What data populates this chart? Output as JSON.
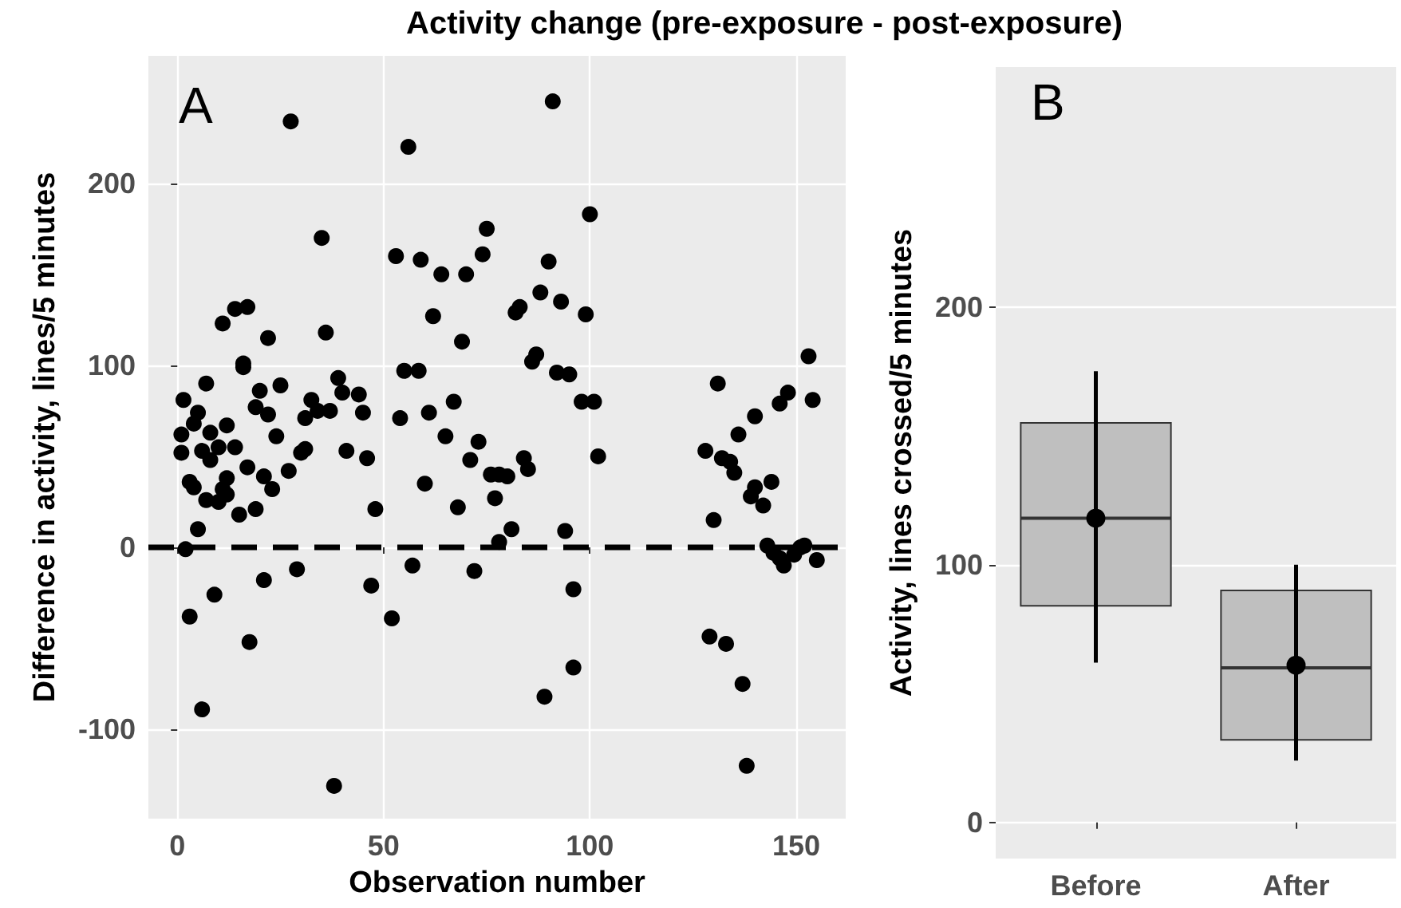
{
  "chart_data": [
    {
      "type": "scatter",
      "title": "Activity change (pre-exposure - post-exposure)",
      "xlabel": "Observation number",
      "ylabel": "Difference in activity, lines/5 minutes",
      "annotations": [
        "A"
      ],
      "xlim": [
        -7,
        162
      ],
      "ylim": [
        -149,
        270
      ],
      "xticks": [
        0,
        50,
        100,
        150
      ],
      "yticks": [
        -100,
        0,
        100,
        200
      ],
      "grid": true,
      "marker": "circle",
      "ref_lines": [
        {
          "axis": "y",
          "value": 0,
          "color": "#000000",
          "line_style": "dashed"
        }
      ],
      "series": [
        {
          "color": "#000000",
          "x": [
            27.5,
            56,
            35,
            53,
            59,
            64,
            11,
            14,
            17,
            62,
            22,
            36,
            16,
            16,
            55,
            58.5,
            7,
            25,
            39,
            1.5,
            20,
            32.5,
            40,
            44,
            19,
            22,
            37,
            34,
            45,
            5,
            12,
            31,
            54,
            61,
            1,
            24,
            8,
            1,
            4,
            6,
            8,
            10,
            14,
            31,
            30,
            41,
            46,
            65,
            3,
            4,
            17,
            21,
            23,
            27,
            12,
            11,
            10,
            7,
            12,
            15,
            19,
            48,
            60,
            5,
            2,
            29,
            21,
            47,
            57,
            9,
            3,
            52,
            17.5,
            6,
            38,
            91,
            100,
            75,
            74,
            70,
            90,
            88,
            93,
            82,
            83,
            99,
            69,
            86,
            87,
            92,
            95,
            98,
            101,
            67,
            73,
            131,
            153,
            154,
            148,
            146,
            140,
            136,
            128,
            71,
            76,
            78,
            80,
            84,
            85,
            68,
            77,
            81,
            78,
            94,
            102,
            72,
            96,
            96,
            89,
            132,
            134,
            135,
            144,
            140,
            139,
            142,
            130,
            143,
            144.5,
            146,
            147,
            149.5,
            151,
            152,
            155,
            129,
            133,
            137,
            138
          ],
          "values": [
            234,
            220,
            170,
            160,
            158,
            150,
            123,
            131,
            132,
            127,
            115,
            118,
            99,
            101,
            97,
            97,
            90,
            89,
            93,
            81,
            86,
            81,
            85,
            84,
            77,
            73,
            75,
            75,
            74,
            74,
            67,
            71,
            71,
            74,
            62,
            61,
            63,
            52,
            68,
            53,
            48,
            55,
            55,
            54,
            52,
            53,
            49,
            61,
            36,
            33,
            44,
            39,
            32,
            42,
            38,
            32,
            25,
            26,
            29,
            18,
            21,
            21,
            35,
            10,
            -1,
            -12,
            -18,
            -21,
            -10,
            -26,
            -38,
            -39,
            -52,
            -89,
            -131,
            245,
            183,
            175,
            161,
            150,
            157,
            140,
            135,
            129,
            132,
            128,
            113,
            102,
            106,
            96,
            95,
            80,
            80,
            80,
            58,
            90,
            105,
            81,
            85,
            79,
            72,
            62,
            53,
            48,
            40,
            40,
            39,
            49,
            43,
            22,
            27,
            10,
            3,
            9,
            50,
            -13,
            -23,
            -66,
            -82,
            49,
            47,
            41,
            36,
            33,
            28,
            23,
            15,
            1,
            -3,
            -6,
            -10,
            -4,
            0,
            1,
            -7,
            -49,
            -53,
            -75,
            -120
          ]
        }
      ]
    },
    {
      "type": "box",
      "ylabel": "Activity, lines crossed/5 minutes",
      "annotations": [
        "B"
      ],
      "categories": [
        "Before",
        "After"
      ],
      "ylim": [
        -14,
        293
      ],
      "yticks": [
        0,
        100,
        200
      ],
      "grid": "y",
      "series": [
        {
          "color": "#bfbfbf",
          "boxes": [
            {
              "low": 62,
              "q1": 84,
              "median": 118,
              "q3": 155,
              "high": 175,
              "mean": 118
            },
            {
              "low": 24,
              "q1": 32,
              "median": 60,
              "q3": 90,
              "high": 100,
              "mean": 61
            }
          ]
        }
      ]
    }
  ]
}
